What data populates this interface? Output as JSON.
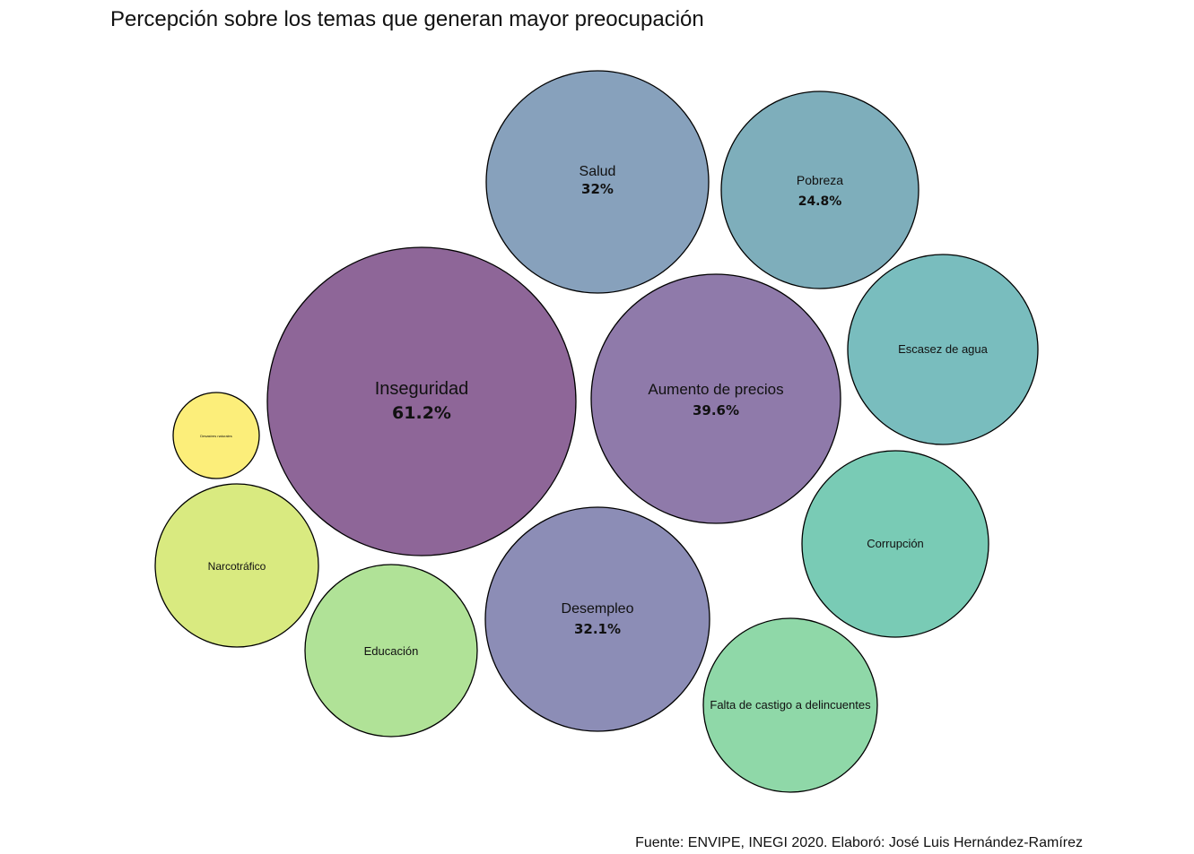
{
  "title": "Percepción sobre los temas que generan mayor preocupación",
  "caption": "Fuente: ENVIPE, INEGI 2020. Elaboró: José Luis Hernández-Ramírez",
  "chart_data": {
    "type": "bubble",
    "title": "Percepción sobre los temas que generan mayor preocupación",
    "series": [
      {
        "label": "Inseguridad",
        "value": 61.2,
        "value_label": "61.2%",
        "color": "#8e6698"
      },
      {
        "label": "Aumento de precios",
        "value": 39.6,
        "value_label": "39.6%",
        "color": "#8f7aaa"
      },
      {
        "label": "Desempleo",
        "value": 32.1,
        "value_label": "32.1%",
        "color": "#8c8db6"
      },
      {
        "label": "Salud",
        "value": 32,
        "value_label": "32%",
        "color": "#87a1bc"
      },
      {
        "label": "Pobreza",
        "value": 24.8,
        "value_label": "24.8%",
        "color": "#7eaebb"
      },
      {
        "label": "Escasez de agua",
        "value": null,
        "value_label": "",
        "color": "#79bdbe"
      },
      {
        "label": "Corrupción",
        "value": null,
        "value_label": "",
        "color": "#79cbb5"
      },
      {
        "label": "Falta de castigo a delincuentes",
        "value": null,
        "value_label": "",
        "color": "#8fd8a8"
      },
      {
        "label": "Educación",
        "value": null,
        "value_label": "",
        "color": "#b0e297"
      },
      {
        "label": "Narcotráfico",
        "value": null,
        "value_label": "",
        "color": "#d9ea80"
      },
      {
        "label": "Desastres naturales",
        "value": null,
        "value_label": "",
        "color": "#fcee7a"
      }
    ]
  }
}
